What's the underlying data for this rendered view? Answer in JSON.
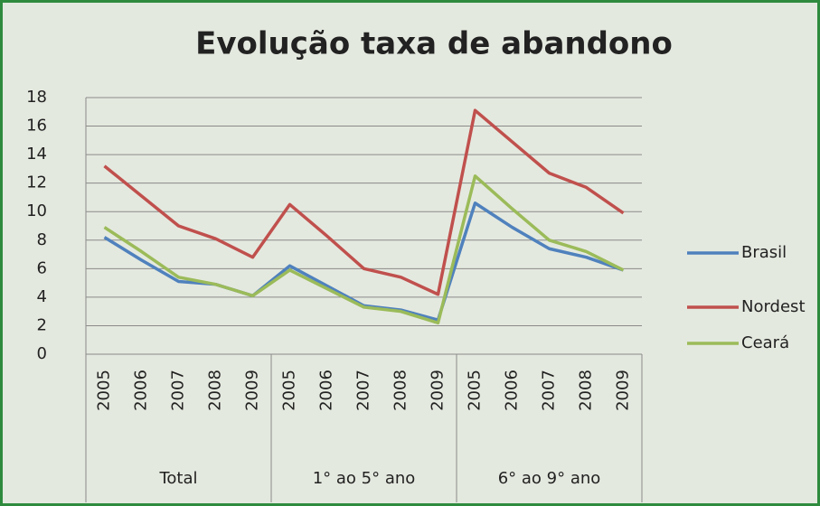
{
  "chart_data": {
    "type": "line",
    "title": "Evolução taxa de abandono",
    "groups": [
      {
        "name": "Total",
        "categories": [
          "2005",
          "2006",
          "2007",
          "2008",
          "2009"
        ]
      },
      {
        "name": "1° ao 5° ano",
        "categories": [
          "2005",
          "2006",
          "2007",
          "2008",
          "2009"
        ]
      },
      {
        "name": "6° ao 9° ano",
        "categories": [
          "2005",
          "2006",
          "2007",
          "2008",
          "2009"
        ]
      }
    ],
    "series": [
      {
        "name": "Brasil",
        "color": "#4f81bd",
        "values": [
          8.2,
          6.6,
          5.1,
          4.9,
          4.1,
          6.2,
          4.8,
          3.4,
          3.1,
          2.4,
          10.6,
          8.9,
          7.4,
          6.8,
          5.9
        ]
      },
      {
        "name": "Nordest",
        "color": "#c0504d",
        "values": [
          13.2,
          11.1,
          9.0,
          8.1,
          6.8,
          10.5,
          8.3,
          6.0,
          5.4,
          4.2,
          17.1,
          14.9,
          12.7,
          11.7,
          9.9
        ]
      },
      {
        "name": "Ceará",
        "color": "#9bbb59",
        "values": [
          8.9,
          7.2,
          5.4,
          4.9,
          4.1,
          5.9,
          4.6,
          3.3,
          3.0,
          2.2,
          12.5,
          10.2,
          8.0,
          7.2,
          5.9
        ]
      }
    ],
    "ylim": [
      0,
      18
    ],
    "yticks": [
      0,
      2,
      4,
      6,
      8,
      10,
      12,
      14,
      16,
      18
    ],
    "grid": true,
    "legend": "right"
  }
}
